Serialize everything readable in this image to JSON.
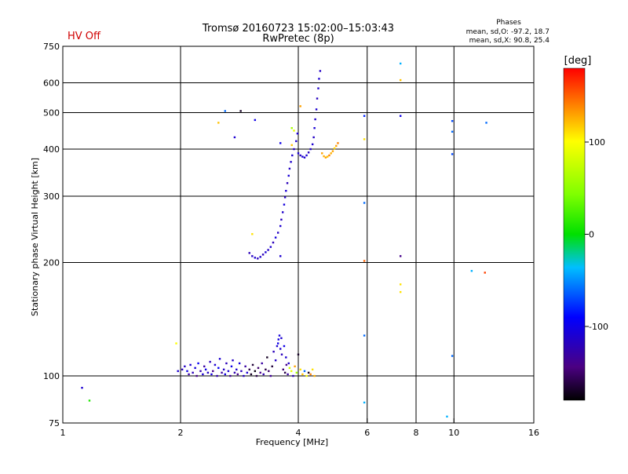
{
  "status_label": "HV Off",
  "status_color": "#d00000",
  "title_line1": "Tromsø 20160723 15:02:00–15:03:43",
  "title_line2": "RwPretec (8p)",
  "phases": {
    "title": "Phases",
    "line_o": "mean, sd,O: -97.2, 18.7",
    "line_x": "mean, sd,X:  90.8, 25.4"
  },
  "colorbar": {
    "label": "[deg]",
    "ticks": [
      "100",
      "0",
      "-100"
    ],
    "tick_values": [
      100,
      0,
      -100
    ],
    "range": [
      -180,
      180
    ]
  },
  "chart_data": {
    "type": "scatter",
    "xlabel": "Frequency [MHz]",
    "ylabel": "Stationary phase Virtual Height [km]",
    "xscale": "log",
    "yscale": "log",
    "xlim": [
      1,
      16
    ],
    "ylim": [
      75,
      750
    ],
    "xticks": [
      1,
      2,
      4,
      6,
      8,
      10,
      16
    ],
    "xtick_labels": [
      "1",
      "2",
      "4",
      "6",
      "8",
      "10",
      "16"
    ],
    "yticks": [
      75,
      100,
      200,
      300,
      400,
      500,
      600,
      750
    ],
    "ytick_labels": [
      "75",
      "100",
      "200",
      "300",
      "400",
      "500",
      "600",
      "750"
    ],
    "grid": true,
    "points": [
      [
        1.12,
        93,
        -110
      ],
      [
        1.17,
        86,
        10
      ],
      [
        1.95,
        122,
        100
      ],
      [
        1.97,
        103,
        -110
      ],
      [
        2.02,
        104,
        -120
      ],
      [
        2.05,
        106,
        -115
      ],
      [
        2.08,
        103,
        -100
      ],
      [
        2.1,
        101,
        -130
      ],
      [
        2.12,
        107,
        -110
      ],
      [
        2.15,
        102,
        -120
      ],
      [
        2.18,
        105,
        -105
      ],
      [
        2.2,
        100,
        -140
      ],
      [
        2.22,
        108,
        -95
      ],
      [
        2.25,
        103,
        -125
      ],
      [
        2.28,
        101,
        -110
      ],
      [
        2.3,
        106,
        -130
      ],
      [
        2.32,
        104,
        -100
      ],
      [
        2.35,
        102,
        -115
      ],
      [
        2.38,
        109,
        -120
      ],
      [
        2.4,
        101,
        -105
      ],
      [
        2.42,
        103,
        -140
      ],
      [
        2.45,
        107,
        -110
      ],
      [
        2.48,
        100,
        -125
      ],
      [
        2.5,
        105,
        -95
      ],
      [
        2.52,
        111,
        -110
      ],
      [
        2.55,
        102,
        -130
      ],
      [
        2.58,
        104,
        -115
      ],
      [
        2.6,
        101,
        -105
      ],
      [
        2.62,
        108,
        -120
      ],
      [
        2.65,
        103,
        -110
      ],
      [
        2.68,
        100,
        -135
      ],
      [
        2.7,
        106,
        -100
      ],
      [
        2.72,
        110,
        -115
      ],
      [
        2.75,
        102,
        -125
      ],
      [
        2.78,
        104,
        -110
      ],
      [
        2.8,
        101,
        -140
      ],
      [
        2.83,
        108,
        -105
      ],
      [
        2.86,
        103,
        -120
      ],
      [
        2.9,
        100,
        -115
      ],
      [
        2.93,
        106,
        -130
      ],
      [
        2.96,
        102,
        -110
      ],
      [
        3.0,
        104,
        -160
      ],
      [
        3.03,
        101,
        -170
      ],
      [
        3.06,
        107,
        -165
      ],
      [
        3.1,
        103,
        -175
      ],
      [
        3.13,
        100,
        -160
      ],
      [
        3.16,
        105,
        -150
      ],
      [
        3.2,
        102,
        -140
      ],
      [
        3.23,
        108,
        -130
      ],
      [
        3.26,
        101,
        -125
      ],
      [
        3.3,
        104,
        -160
      ],
      [
        3.33,
        112,
        -170
      ],
      [
        3.36,
        103,
        -150
      ],
      [
        3.4,
        100,
        -135
      ],
      [
        3.43,
        106,
        -165
      ],
      [
        3.46,
        116,
        -120
      ],
      [
        3.5,
        110,
        -115
      ],
      [
        3.53,
        120,
        -110
      ],
      [
        3.56,
        125,
        -105
      ],
      [
        3.6,
        118,
        -110
      ],
      [
        3.63,
        114,
        -120
      ],
      [
        3.66,
        104,
        -150
      ],
      [
        3.7,
        102,
        -160
      ],
      [
        3.73,
        107,
        -140
      ],
      [
        3.76,
        101,
        -130
      ],
      [
        3.8,
        105,
        80
      ],
      [
        3.84,
        103,
        90
      ],
      [
        3.88,
        100,
        -120
      ],
      [
        3.92,
        106,
        130
      ],
      [
        3.96,
        102,
        60
      ],
      [
        4.0,
        114,
        -170
      ],
      [
        4.05,
        104,
        110
      ],
      [
        4.1,
        101,
        120
      ],
      [
        4.15,
        103,
        -60
      ],
      [
        4.2,
        100,
        100
      ],
      [
        4.25,
        102,
        -170
      ],
      [
        4.3,
        101,
        140
      ],
      [
        4.35,
        104,
        110
      ],
      [
        4.4,
        100,
        125
      ],
      [
        3.55,
        122,
        -100
      ],
      [
        3.58,
        128,
        -105
      ],
      [
        3.62,
        126,
        -110
      ],
      [
        3.68,
        120,
        -100
      ],
      [
        3.72,
        112,
        -110
      ],
      [
        3.78,
        108,
        -115
      ],
      [
        3.0,
        212,
        -120
      ],
      [
        3.05,
        208,
        -115
      ],
      [
        3.1,
        206,
        -110
      ],
      [
        3.15,
        205,
        -118
      ],
      [
        3.2,
        207,
        -112
      ],
      [
        3.25,
        210,
        -120
      ],
      [
        3.3,
        213,
        -108
      ],
      [
        3.35,
        216,
        -115
      ],
      [
        3.4,
        220,
        -110
      ],
      [
        3.45,
        226,
        -120
      ],
      [
        3.5,
        233,
        -105
      ],
      [
        3.55,
        240,
        -115
      ],
      [
        3.6,
        250,
        -110
      ],
      [
        3.62,
        260,
        -118
      ],
      [
        3.65,
        272,
        -112
      ],
      [
        3.68,
        285,
        -105
      ],
      [
        3.7,
        298,
        -115
      ],
      [
        3.72,
        310,
        -110
      ],
      [
        3.75,
        325,
        -120
      ],
      [
        3.78,
        340,
        -108
      ],
      [
        3.8,
        355,
        -115
      ],
      [
        3.83,
        370,
        -112
      ],
      [
        3.86,
        385,
        -110
      ],
      [
        3.9,
        400,
        -118
      ],
      [
        3.95,
        420,
        -112
      ],
      [
        3.98,
        440,
        -110
      ],
      [
        3.85,
        455,
        60
      ],
      [
        3.9,
        448,
        90
      ],
      [
        4.0,
        390,
        -110
      ],
      [
        4.05,
        385,
        -115
      ],
      [
        4.1,
        382,
        -108
      ],
      [
        4.15,
        380,
        -112
      ],
      [
        4.2,
        385,
        -110
      ],
      [
        4.25,
        392,
        -118
      ],
      [
        4.3,
        400,
        -112
      ],
      [
        4.35,
        412,
        -110
      ],
      [
        4.38,
        430,
        -115
      ],
      [
        4.4,
        455,
        -108
      ],
      [
        4.42,
        480,
        -112
      ],
      [
        4.45,
        510,
        -110
      ],
      [
        4.47,
        545,
        -118
      ],
      [
        4.5,
        580,
        -112
      ],
      [
        4.52,
        615,
        -110
      ],
      [
        4.55,
        645,
        -115
      ],
      [
        4.6,
        390,
        130
      ],
      [
        4.65,
        383,
        125
      ],
      [
        4.7,
        380,
        130
      ],
      [
        4.75,
        382,
        120
      ],
      [
        4.8,
        385,
        140
      ],
      [
        4.85,
        390,
        125
      ],
      [
        4.9,
        395,
        130
      ],
      [
        4.95,
        402,
        115
      ],
      [
        5.0,
        408,
        130
      ],
      [
        5.05,
        415,
        140
      ],
      [
        2.5,
        470,
        120
      ],
      [
        2.6,
        505,
        -60
      ],
      [
        2.85,
        505,
        -170
      ],
      [
        3.1,
        478,
        -100
      ],
      [
        2.75,
        430,
        -110
      ],
      [
        3.6,
        415,
        -100
      ],
      [
        3.85,
        410,
        120
      ],
      [
        4.05,
        520,
        130
      ],
      [
        3.05,
        238,
        110
      ],
      [
        3.6,
        208,
        -110
      ],
      [
        5.9,
        490,
        -80
      ],
      [
        5.9,
        425,
        110
      ],
      [
        5.9,
        288,
        -60
      ],
      [
        5.9,
        202,
        150
      ],
      [
        5.9,
        128,
        -60
      ],
      [
        5.9,
        85,
        -40
      ],
      [
        7.3,
        675,
        -40
      ],
      [
        7.3,
        610,
        120
      ],
      [
        7.3,
        490,
        -100
      ],
      [
        7.3,
        208,
        -140
      ],
      [
        7.3,
        175,
        110
      ],
      [
        7.3,
        167,
        110
      ],
      [
        9.9,
        475,
        -70
      ],
      [
        9.9,
        445,
        -60
      ],
      [
        9.9,
        388,
        -70
      ],
      [
        9.9,
        113,
        -60
      ],
      [
        9.6,
        78,
        -40
      ],
      [
        11.1,
        190,
        -40
      ],
      [
        12.0,
        188,
        160
      ],
      [
        12.1,
        470,
        -60
      ]
    ]
  }
}
